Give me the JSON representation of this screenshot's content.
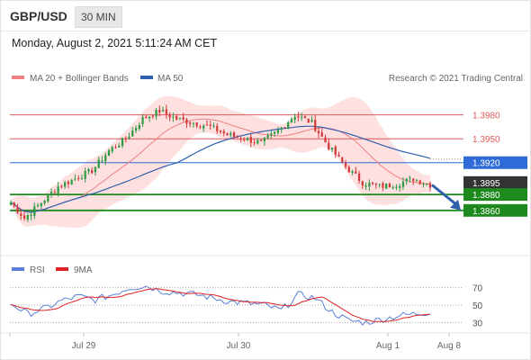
{
  "header": {
    "symbol": "GBP/USD",
    "timeframe": "30 MIN"
  },
  "date_label": "Monday, August 2, 2021 5:11:24 AM CET",
  "copyright": "Research © 2021 Trading Central",
  "colors": {
    "resistance": "#e05a5a",
    "pivot": "#2e6bd6",
    "support": "#1e8a1e",
    "ma20": "#f08080",
    "ma50": "#3060b0",
    "bollinger": "#ffd6d6",
    "bull": "#2e9a44",
    "bear": "#d33a3a",
    "rsi": "#5b7fd6",
    "rsi_ma": "#dd2222",
    "last_price": "#333333",
    "arrow": "#2e5fa8"
  },
  "chart_data": [
    {
      "type": "candlestick",
      "name": "price",
      "legend": [
        {
          "label": "MA 20 + Bollinger Bands",
          "color": "#f08080"
        },
        {
          "label": "MA 50",
          "color": "#3060b0"
        }
      ],
      "ylim": [
        1.381,
        1.4
      ],
      "x_ticks": [
        "Jul 29",
        "Jul 30",
        "Aug 1",
        "Aug 8"
      ],
      "levels": [
        {
          "value": 1.398,
          "label": "1.3980",
          "kind": "resistance"
        },
        {
          "value": 1.395,
          "label": "1.3950",
          "kind": "resistance"
        },
        {
          "value": 1.392,
          "label": "1.3920",
          "kind": "pivot"
        },
        {
          "value": 1.3895,
          "label": "1.3895",
          "kind": "last"
        },
        {
          "value": 1.388,
          "label": "1.3880",
          "kind": "support"
        },
        {
          "value": 1.386,
          "label": "1.3860",
          "kind": "support"
        }
      ],
      "anchors": [
        [
          0,
          1.387
        ],
        [
          4,
          1.385
        ],
        [
          9,
          1.387
        ],
        [
          14,
          1.389
        ],
        [
          19,
          1.39
        ],
        [
          24,
          1.391
        ],
        [
          29,
          1.3935
        ],
        [
          34,
          1.395
        ],
        [
          39,
          1.3975
        ],
        [
          44,
          1.3985
        ],
        [
          49,
          1.3975
        ],
        [
          54,
          1.397
        ],
        [
          59,
          1.3965
        ],
        [
          64,
          1.3955
        ],
        [
          69,
          1.395
        ],
        [
          74,
          1.3945
        ],
        [
          79,
          1.396
        ],
        [
          84,
          1.398
        ],
        [
          89,
          1.397
        ],
        [
          94,
          1.394
        ],
        [
          99,
          1.3915
        ],
        [
          104,
          1.3895
        ],
        [
          109,
          1.389
        ],
        [
          114,
          1.3893
        ],
        [
          119,
          1.39
        ],
        [
          124,
          1.3892
        ]
      ],
      "arrow": {
        "from": 1.3892,
        "to": 1.386
      }
    },
    {
      "type": "line",
      "name": "rsi",
      "legend": [
        {
          "label": "RSI",
          "color": "#5b7fd6"
        },
        {
          "label": "9MA",
          "color": "#dd2222"
        }
      ],
      "ylim": [
        20,
        80
      ],
      "y_ticks": [
        70,
        50,
        30
      ],
      "levels": [
        70,
        50,
        30
      ],
      "anchors": [
        [
          0,
          52
        ],
        [
          5,
          40
        ],
        [
          10,
          46
        ],
        [
          15,
          55
        ],
        [
          20,
          60
        ],
        [
          25,
          56
        ],
        [
          30,
          62
        ],
        [
          35,
          70
        ],
        [
          40,
          72
        ],
        [
          45,
          66
        ],
        [
          50,
          64
        ],
        [
          55,
          62
        ],
        [
          60,
          58
        ],
        [
          65,
          54
        ],
        [
          70,
          52
        ],
        [
          75,
          50
        ],
        [
          80,
          44
        ],
        [
          85,
          62
        ],
        [
          90,
          58
        ],
        [
          95,
          42
        ],
        [
          100,
          32
        ],
        [
          105,
          30
        ],
        [
          110,
          34
        ],
        [
          115,
          38
        ],
        [
          120,
          40
        ],
        [
          124,
          42
        ]
      ]
    }
  ]
}
